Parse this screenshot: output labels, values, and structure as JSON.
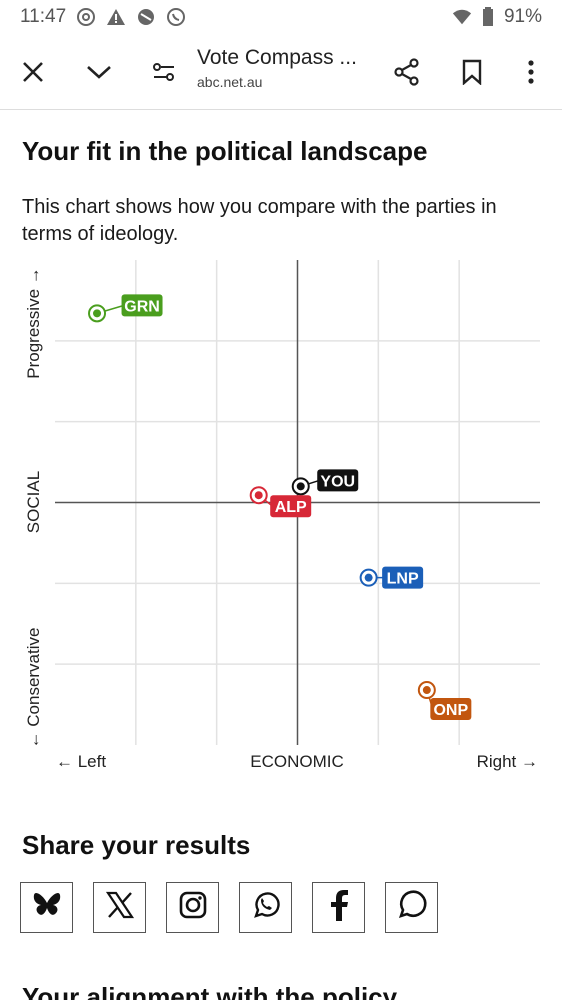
{
  "status": {
    "time": "11:47",
    "battery": "91%",
    "icons": [
      "threads-icon",
      "warning-icon",
      "do-not-disturb-icon",
      "whatsapp-icon",
      "wifi-icon",
      "battery-icon"
    ]
  },
  "toolbar": {
    "title": "Vote Compass ...",
    "url": "abc.net.au",
    "icons": [
      "close-icon",
      "chevron-down-icon",
      "tune-icon",
      "share-icon",
      "bookmark-icon",
      "more-icon"
    ]
  },
  "page": {
    "heading": "Your fit in the political landscape",
    "description": "This chart shows how you compare with the parties in terms of ideology.",
    "share_title": "Share your results",
    "next_heading": "Your alignment with the policy"
  },
  "share": {
    "buttons": [
      "bluesky-icon",
      "x-icon",
      "instagram-icon",
      "whatsapp-icon",
      "facebook-icon",
      "messenger-icon"
    ]
  },
  "chart_data": {
    "type": "scatter",
    "xlabel": "ECONOMIC",
    "ylabel": "SOCIAL",
    "x_left_label": "← Left",
    "x_right_label": "Right →",
    "y_top_label": "Progressive →",
    "y_bottom_label": "← Conservative",
    "xlim": [
      -3,
      3
    ],
    "ylim": [
      -3,
      3
    ],
    "grid": true,
    "points": [
      {
        "label": "GRN",
        "x": -2.48,
        "y": 2.34,
        "color": "#4a9e1e"
      },
      {
        "label": "YOU",
        "x": 0.04,
        "y": 0.2,
        "color": "#111111"
      },
      {
        "label": "ALP",
        "x": -0.48,
        "y": 0.09,
        "color": "#d72837"
      },
      {
        "label": "LNP",
        "x": 0.88,
        "y": -0.93,
        "color": "#1b5fb8"
      },
      {
        "label": "ONP",
        "x": 1.6,
        "y": -2.32,
        "color": "#c2560f"
      }
    ]
  }
}
